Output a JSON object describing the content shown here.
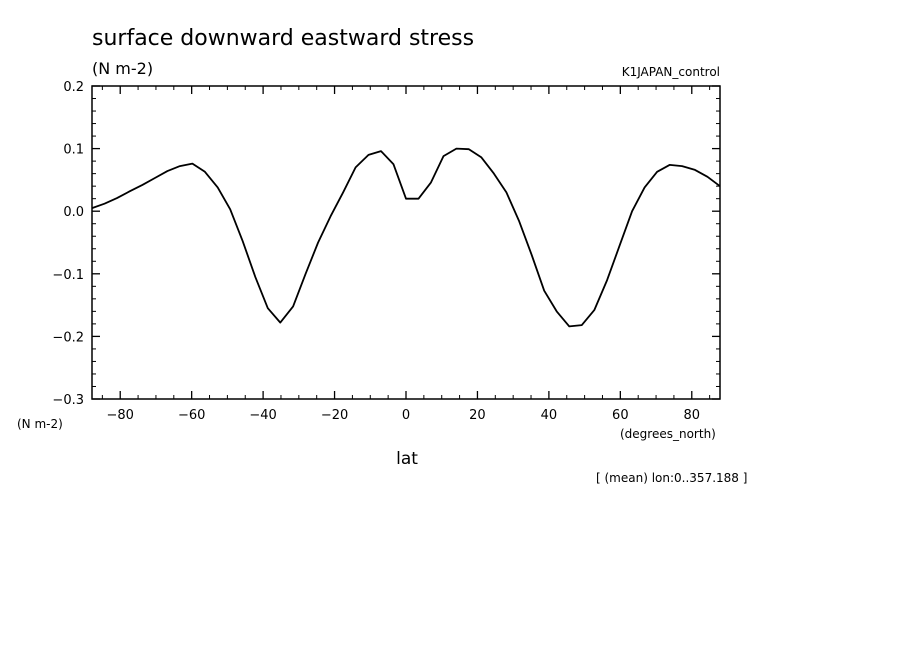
{
  "chart_data": {
    "type": "line",
    "title": "surface downward eastward stress",
    "units": "(N m-2)",
    "run_label": "K1JAPAN_control",
    "ylabel": "(N m-2)",
    "xlabel": "lat",
    "xunits": "(degrees_north)",
    "footnote": "[ (mean) lon:0..357.188 ]",
    "xlim": [
      -87.9,
      87.9
    ],
    "ylim": [
      -0.3,
      0.2
    ],
    "xticks": [
      -80,
      -60,
      -40,
      -20,
      0,
      20,
      40,
      60,
      80
    ],
    "xtick_labels": [
      "−80",
      "−60",
      "−40",
      "−20",
      "0",
      "20",
      "40",
      "60",
      "80"
    ],
    "yticks": [
      -0.3,
      -0.2,
      -0.1,
      0.0,
      0.1,
      0.2
    ],
    "ytick_labels": [
      "−0.3",
      "−0.2",
      "−0.1",
      "0.0",
      "0.1",
      "0.2"
    ],
    "grid": false,
    "line_color": "#000000",
    "series": [
      {
        "x": [
          -87.9,
          -84.4,
          -80.9,
          -77.3,
          -73.8,
          -70.3,
          -66.8,
          -63.3,
          -59.8,
          -56.3,
          -52.7,
          -49.2,
          -45.7,
          -42.2,
          -38.7,
          -35.2,
          -31.6,
          -28.1,
          -24.6,
          -21.1,
          -17.6,
          -14.1,
          -10.5,
          -7.0,
          -3.5,
          0.0,
          3.5,
          7.0,
          10.5,
          14.1,
          17.6,
          21.1,
          24.6,
          28.1,
          31.6,
          35.2,
          38.7,
          42.2,
          45.7,
          49.2,
          52.7,
          56.3,
          59.8,
          63.3,
          66.8,
          70.3,
          73.8,
          77.3,
          80.9,
          84.4,
          87.9
        ],
        "y": [
          0.005,
          0.012,
          0.021,
          0.032,
          0.042,
          0.053,
          0.064,
          0.072,
          0.076,
          0.063,
          0.038,
          0.003,
          -0.048,
          -0.105,
          -0.155,
          -0.178,
          -0.152,
          -0.1,
          -0.05,
          -0.008,
          0.03,
          0.07,
          0.09,
          0.096,
          0.075,
          0.02,
          0.02,
          0.046,
          0.088,
          0.1,
          0.099,
          0.086,
          0.06,
          0.03,
          -0.015,
          -0.07,
          -0.127,
          -0.16,
          -0.184,
          -0.182,
          -0.158,
          -0.11,
          -0.055,
          0.0,
          0.038,
          0.063,
          0.074,
          0.072,
          0.066,
          0.055,
          0.04
        ]
      }
    ]
  }
}
